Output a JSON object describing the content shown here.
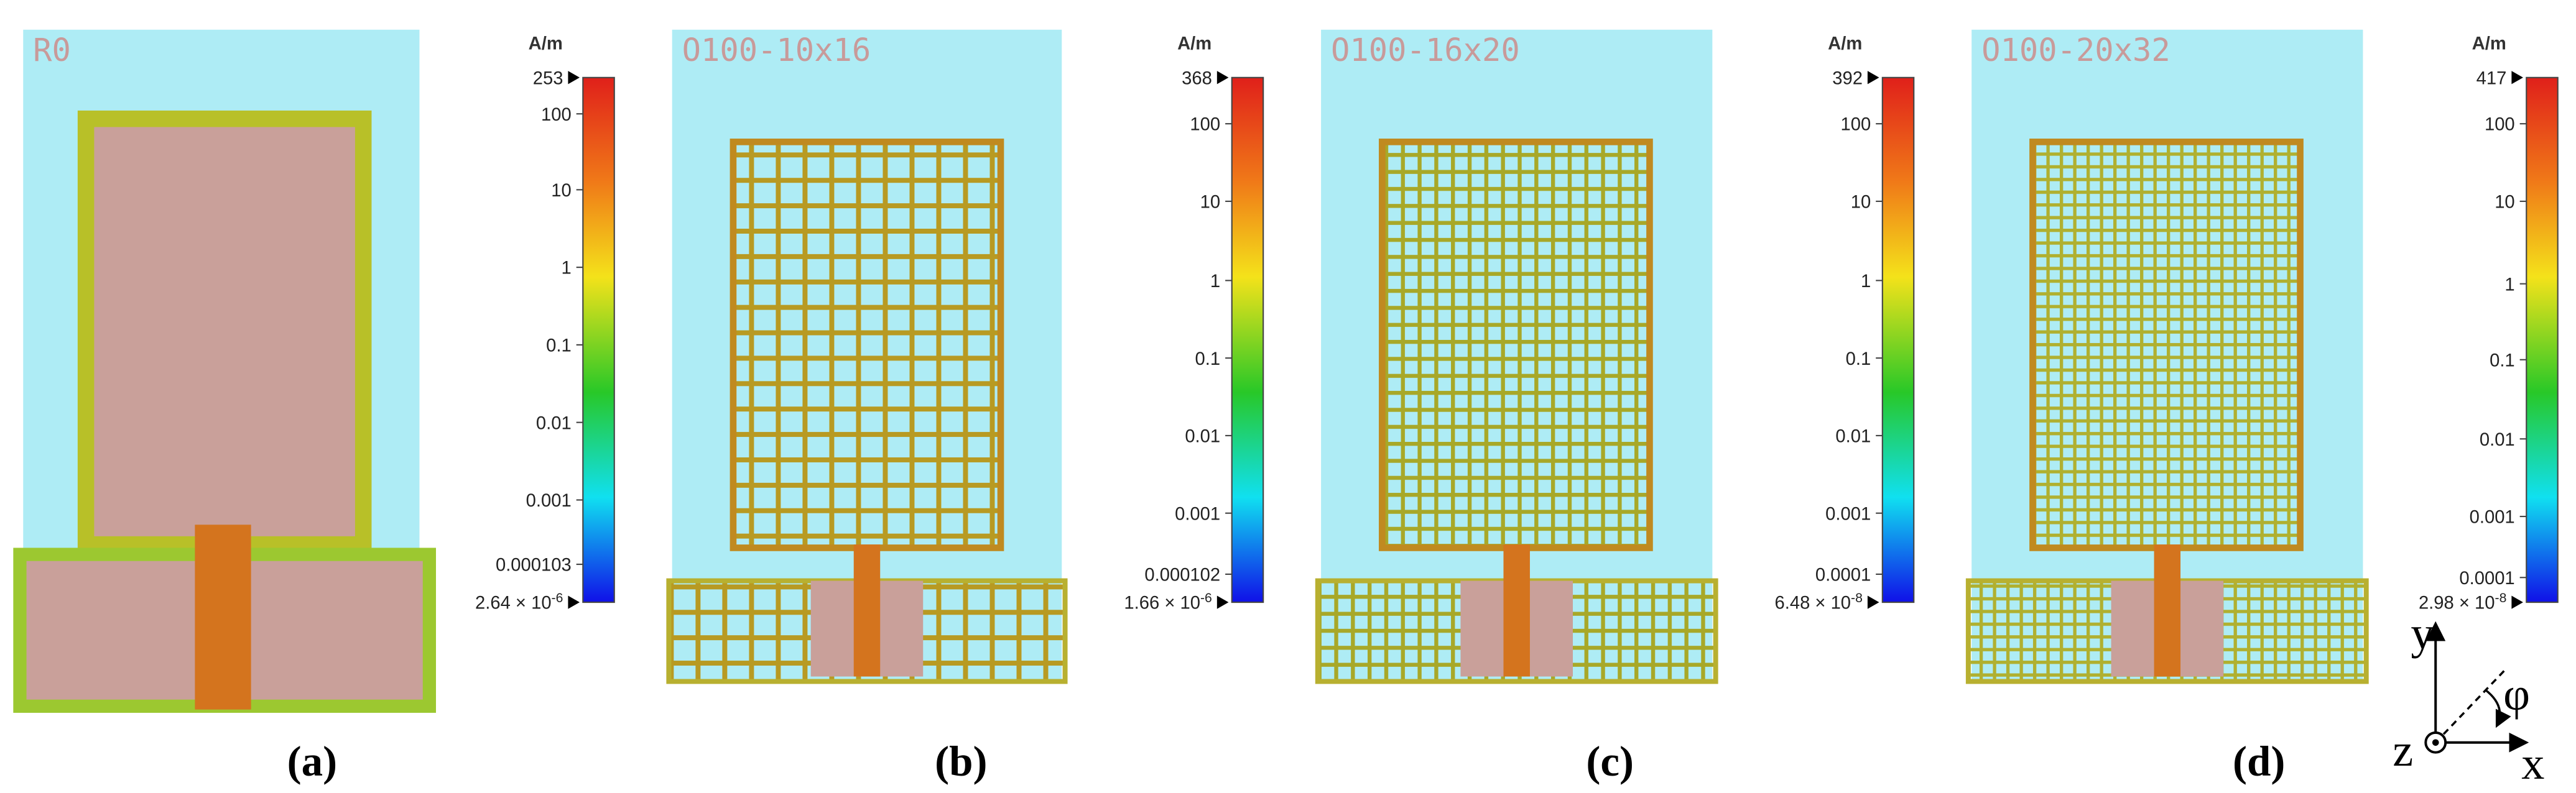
{
  "panels": [
    {
      "label": "R0",
      "unit": "A/m",
      "max": "253",
      "ticks": [
        "100",
        "10",
        "1",
        "0.1",
        "0.01",
        "0.001",
        "0.000103"
      ],
      "min": {
        "base": "2.64 × 10",
        "exp": "-6"
      },
      "caption": "(a)"
    },
    {
      "label": "O100-10x16",
      "unit": "A/m",
      "max": "368",
      "ticks": [
        "100",
        "10",
        "1",
        "0.1",
        "0.01",
        "0.001",
        "0.000102"
      ],
      "min": {
        "base": "1.66 × 10",
        "exp": "-6"
      },
      "caption": "(b)"
    },
    {
      "label": "O100-16x20",
      "unit": "A/m",
      "max": "392",
      "ticks": [
        "100",
        "10",
        "1",
        "0.1",
        "0.01",
        "0.001",
        "0.0001"
      ],
      "min": {
        "base": "6.48 × 10",
        "exp": "-8"
      },
      "caption": "(c)"
    },
    {
      "label": "O100-20x32",
      "unit": "A/m",
      "max": "417",
      "ticks": [
        "100",
        "10",
        "1",
        "0.1",
        "0.01",
        "0.001",
        "0.0001"
      ],
      "min": {
        "base": "2.98 × 10",
        "exp": "-8"
      },
      "caption": "(d)"
    }
  ],
  "axes": {
    "y": "y",
    "x": "x",
    "z": "z",
    "phi": "φ"
  }
}
